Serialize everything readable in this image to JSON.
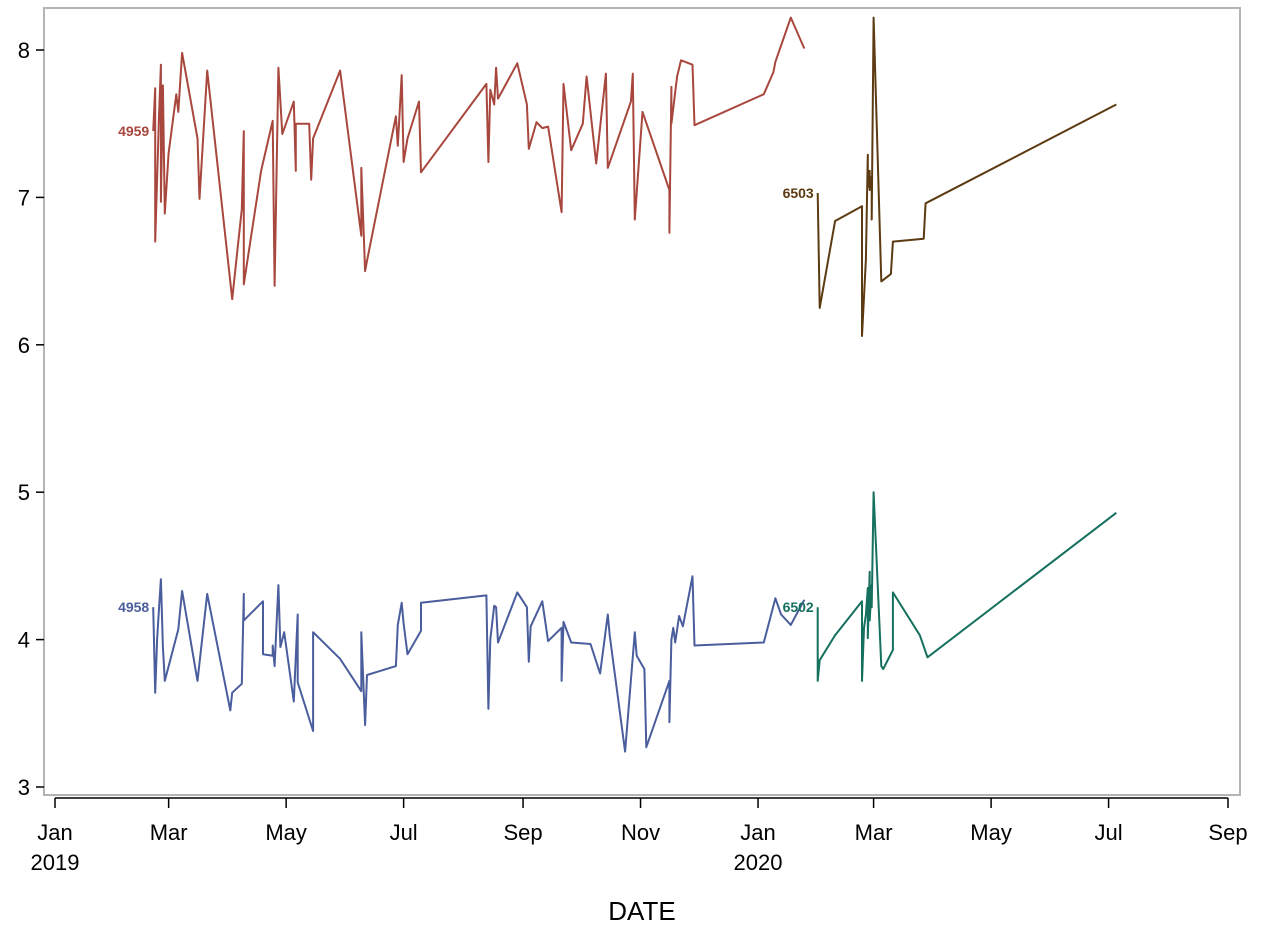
{
  "chart_data": {
    "type": "line",
    "title": "",
    "xlabel": "DATE",
    "ylabel": "",
    "xlim": [
      "2019-01-01",
      "2020-09-01"
    ],
    "ylim": [
      3,
      8.2
    ],
    "grid": false,
    "legend": "none (series labeled inline at start of each line)",
    "x_ticks": [
      {
        "date": "2019-01-01",
        "label": "Jan",
        "year_label": "2019"
      },
      {
        "date": "2019-03-01",
        "label": "Mar",
        "year_label": ""
      },
      {
        "date": "2019-05-01",
        "label": "May",
        "year_label": ""
      },
      {
        "date": "2019-07-01",
        "label": "Jul",
        "year_label": ""
      },
      {
        "date": "2019-09-01",
        "label": "Sep",
        "year_label": ""
      },
      {
        "date": "2019-11-01",
        "label": "Nov",
        "year_label": ""
      },
      {
        "date": "2020-01-01",
        "label": "Jan",
        "year_label": "2020"
      },
      {
        "date": "2020-03-01",
        "label": "Mar",
        "year_label": ""
      },
      {
        "date": "2020-05-01",
        "label": "May",
        "year_label": ""
      },
      {
        "date": "2020-07-01",
        "label": "Jul",
        "year_label": ""
      },
      {
        "date": "2020-09-01",
        "label": "Sep",
        "year_label": ""
      }
    ],
    "y_ticks": [
      3,
      4,
      5,
      6,
      7,
      8
    ],
    "series": [
      {
        "name": "4959",
        "color": "#A8473D",
        "points": [
          [
            "2019-02-21",
            7.45
          ],
          [
            "2019-02-22",
            7.74
          ],
          [
            "2019-02-22",
            6.7
          ],
          [
            "2019-02-24",
            7.55
          ],
          [
            "2019-02-25",
            7.9
          ],
          [
            "2019-02-25",
            6.97
          ],
          [
            "2019-02-26",
            7.76
          ],
          [
            "2019-02-27",
            6.89
          ],
          [
            "2019-03-01",
            7.3
          ],
          [
            "2019-03-05",
            7.7
          ],
          [
            "2019-03-06",
            7.58
          ],
          [
            "2019-03-08",
            7.98
          ],
          [
            "2019-03-16",
            7.4
          ],
          [
            "2019-03-17",
            6.99
          ],
          [
            "2019-03-21",
            7.86
          ],
          [
            "2019-04-03",
            6.31
          ],
          [
            "2019-04-08",
            6.92
          ],
          [
            "2019-04-09",
            7.45
          ],
          [
            "2019-04-09",
            6.41
          ],
          [
            "2019-04-18",
            7.18
          ],
          [
            "2019-04-24",
            7.52
          ],
          [
            "2019-04-25",
            6.4
          ],
          [
            "2019-04-27",
            7.88
          ],
          [
            "2019-04-29",
            7.43
          ],
          [
            "2019-05-05",
            7.65
          ],
          [
            "2019-05-06",
            7.18
          ],
          [
            "2019-05-06",
            7.5
          ],
          [
            "2019-05-13",
            7.5
          ],
          [
            "2019-05-14",
            7.12
          ],
          [
            "2019-05-15",
            7.4
          ],
          [
            "2019-05-29",
            7.86
          ],
          [
            "2019-06-09",
            6.74
          ],
          [
            "2019-06-09",
            7.2
          ],
          [
            "2019-06-11",
            6.5
          ],
          [
            "2019-06-12",
            6.57
          ],
          [
            "2019-06-27",
            7.55
          ],
          [
            "2019-06-28",
            7.35
          ],
          [
            "2019-06-30",
            7.83
          ],
          [
            "2019-07-01",
            7.24
          ],
          [
            "2019-07-03",
            7.4
          ],
          [
            "2019-07-09",
            7.65
          ],
          [
            "2019-07-10",
            7.17
          ],
          [
            "2019-08-13",
            7.77
          ],
          [
            "2019-08-14",
            7.24
          ],
          [
            "2019-08-15",
            7.73
          ],
          [
            "2019-08-17",
            7.63
          ],
          [
            "2019-08-18",
            7.88
          ],
          [
            "2019-08-19",
            7.67
          ],
          [
            "2019-08-29",
            7.91
          ],
          [
            "2019-09-03",
            7.63
          ],
          [
            "2019-09-04",
            7.33
          ],
          [
            "2019-09-08",
            7.51
          ],
          [
            "2019-09-11",
            7.47
          ],
          [
            "2019-09-14",
            7.48
          ],
          [
            "2019-09-21",
            6.9
          ],
          [
            "2019-09-22",
            7.77
          ],
          [
            "2019-09-26",
            7.32
          ],
          [
            "2019-10-02",
            7.5
          ],
          [
            "2019-10-04",
            7.82
          ],
          [
            "2019-10-09",
            7.23
          ],
          [
            "2019-10-14",
            7.84
          ],
          [
            "2019-10-15",
            7.2
          ],
          [
            "2019-10-27",
            7.65
          ],
          [
            "2019-10-28",
            7.84
          ],
          [
            "2019-10-29",
            6.85
          ],
          [
            "2019-11-02",
            7.58
          ],
          [
            "2019-11-16",
            7.05
          ],
          [
            "2019-11-16",
            6.76
          ],
          [
            "2019-11-17",
            7.75
          ],
          [
            "2019-11-17",
            7.5
          ],
          [
            "2019-11-20",
            7.82
          ],
          [
            "2019-11-22",
            7.93
          ],
          [
            "2019-11-28",
            7.9
          ],
          [
            "2019-11-29",
            7.49
          ],
          [
            "2020-01-04",
            7.7
          ],
          [
            "2020-01-09",
            7.85
          ],
          [
            "2020-01-10",
            7.92
          ],
          [
            "2020-01-18",
            8.22
          ],
          [
            "2020-01-25",
            8.01
          ]
        ]
      },
      {
        "name": "4958",
        "color": "#4A5D9C",
        "points": [
          [
            "2019-02-21",
            4.22
          ],
          [
            "2019-02-22",
            3.64
          ],
          [
            "2019-02-23",
            4.0
          ],
          [
            "2019-02-24",
            4.21
          ],
          [
            "2019-02-25",
            4.41
          ],
          [
            "2019-02-26",
            3.95
          ],
          [
            "2019-02-27",
            3.72
          ],
          [
            "2019-03-06",
            4.07
          ],
          [
            "2019-03-08",
            4.33
          ],
          [
            "2019-03-16",
            3.72
          ],
          [
            "2019-03-21",
            4.31
          ],
          [
            "2019-04-02",
            3.52
          ],
          [
            "2019-04-03",
            3.64
          ],
          [
            "2019-04-08",
            3.7
          ],
          [
            "2019-04-09",
            4.31
          ],
          [
            "2019-04-09",
            4.13
          ],
          [
            "2019-04-19",
            4.26
          ],
          [
            "2019-04-19",
            3.9
          ],
          [
            "2019-04-24",
            3.89
          ],
          [
            "2019-04-24",
            3.96
          ],
          [
            "2019-04-25",
            3.82
          ],
          [
            "2019-04-27",
            4.37
          ],
          [
            "2019-04-28",
            3.95
          ],
          [
            "2019-04-30",
            4.05
          ],
          [
            "2019-05-05",
            3.58
          ],
          [
            "2019-05-07",
            4.17
          ],
          [
            "2019-05-07",
            3.71
          ],
          [
            "2019-05-15",
            3.38
          ],
          [
            "2019-05-15",
            4.05
          ],
          [
            "2019-05-29",
            3.87
          ],
          [
            "2019-06-09",
            3.65
          ],
          [
            "2019-06-09",
            4.05
          ],
          [
            "2019-06-11",
            3.42
          ],
          [
            "2019-06-12",
            3.76
          ],
          [
            "2019-06-27",
            3.82
          ],
          [
            "2019-06-28",
            4.1
          ],
          [
            "2019-06-30",
            4.25
          ],
          [
            "2019-07-01",
            4.11
          ],
          [
            "2019-07-03",
            3.9
          ],
          [
            "2019-07-10",
            4.06
          ],
          [
            "2019-07-10",
            4.25
          ],
          [
            "2019-08-13",
            4.3
          ],
          [
            "2019-08-14",
            3.53
          ],
          [
            "2019-08-15",
            4.0
          ],
          [
            "2019-08-17",
            4.23
          ],
          [
            "2019-08-18",
            4.22
          ],
          [
            "2019-08-19",
            3.98
          ],
          [
            "2019-08-29",
            4.32
          ],
          [
            "2019-09-03",
            4.22
          ],
          [
            "2019-09-04",
            3.85
          ],
          [
            "2019-09-05",
            4.09
          ],
          [
            "2019-09-11",
            4.26
          ],
          [
            "2019-09-14",
            3.99
          ],
          [
            "2019-09-21",
            4.08
          ],
          [
            "2019-09-21",
            3.72
          ],
          [
            "2019-09-22",
            4.12
          ],
          [
            "2019-09-26",
            3.98
          ],
          [
            "2019-10-06",
            3.97
          ],
          [
            "2019-10-11",
            3.77
          ],
          [
            "2019-10-15",
            4.17
          ],
          [
            "2019-10-16",
            4.03
          ],
          [
            "2019-10-24",
            3.24
          ],
          [
            "2019-10-29",
            4.05
          ],
          [
            "2019-10-30",
            3.89
          ],
          [
            "2019-11-03",
            3.8
          ],
          [
            "2019-11-04",
            3.27
          ],
          [
            "2019-11-16",
            3.72
          ],
          [
            "2019-11-16",
            3.44
          ],
          [
            "2019-11-17",
            4.0
          ],
          [
            "2019-11-18",
            4.08
          ],
          [
            "2019-11-19",
            3.98
          ],
          [
            "2019-11-21",
            4.16
          ],
          [
            "2019-11-23",
            4.09
          ],
          [
            "2019-11-28",
            4.43
          ],
          [
            "2019-11-29",
            3.96
          ],
          [
            "2020-01-04",
            3.98
          ],
          [
            "2020-01-10",
            4.28
          ],
          [
            "2020-01-13",
            4.17
          ],
          [
            "2020-01-18",
            4.1
          ],
          [
            "2020-01-25",
            4.27
          ]
        ]
      },
      {
        "name": "6503",
        "color": "#5C3A12",
        "points": [
          [
            "2020-02-01",
            7.03
          ],
          [
            "2020-02-02",
            6.25
          ],
          [
            "2020-02-10",
            6.84
          ],
          [
            "2020-02-24",
            6.94
          ],
          [
            "2020-02-24",
            6.06
          ],
          [
            "2020-02-26",
            6.58
          ],
          [
            "2020-02-27",
            7.29
          ],
          [
            "2020-02-27",
            7.07
          ],
          [
            "2020-02-28",
            7.18
          ],
          [
            "2020-02-28",
            7.05
          ],
          [
            "2020-02-29",
            7.14
          ],
          [
            "2020-02-29",
            6.85
          ],
          [
            "2020-03-01",
            8.22
          ],
          [
            "2020-03-05",
            6.43
          ],
          [
            "2020-03-10",
            6.48
          ],
          [
            "2020-03-11",
            6.7
          ],
          [
            "2020-03-27",
            6.72
          ],
          [
            "2020-03-28",
            6.96
          ],
          [
            "2020-07-05",
            7.63
          ]
        ]
      },
      {
        "name": "6502",
        "color": "#15705E",
        "points": [
          [
            "2020-02-01",
            4.22
          ],
          [
            "2020-02-01",
            3.72
          ],
          [
            "2020-02-02",
            3.86
          ],
          [
            "2020-02-10",
            4.03
          ],
          [
            "2020-02-24",
            4.26
          ],
          [
            "2020-02-24",
            3.72
          ],
          [
            "2020-02-25",
            4.08
          ],
          [
            "2020-02-26",
            4.17
          ],
          [
            "2020-02-27",
            4.35
          ],
          [
            "2020-02-27",
            4.01
          ],
          [
            "2020-02-28",
            4.46
          ],
          [
            "2020-02-28",
            4.13
          ],
          [
            "2020-02-29",
            4.37
          ],
          [
            "2020-02-29",
            4.22
          ],
          [
            "2020-03-01",
            5.0
          ],
          [
            "2020-03-05",
            3.82
          ],
          [
            "2020-03-06",
            3.8
          ],
          [
            "2020-03-11",
            3.93
          ],
          [
            "2020-03-11",
            4.32
          ],
          [
            "2020-03-25",
            4.03
          ],
          [
            "2020-03-29",
            3.88
          ],
          [
            "2020-07-05",
            4.86
          ]
        ]
      }
    ]
  }
}
